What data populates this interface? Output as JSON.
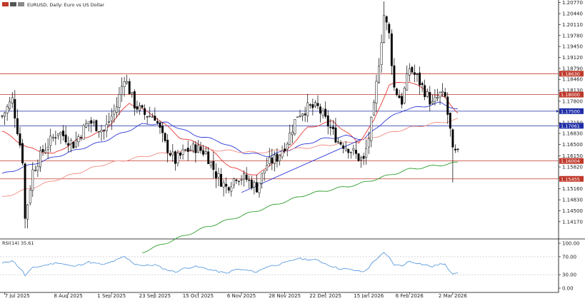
{
  "header": {
    "symbol_text": "EURUSD, Daily:  Euro vs US Dollar",
    "icon_colors": [
      "#c0392b",
      "#555555",
      "#8a8a8a"
    ]
  },
  "chart_data": [
    {
      "type": "candlestick",
      "title": "EURUSD, Daily:  Euro vs US Dollar",
      "ylim": [
        1.1365,
        1.2085
      ],
      "y_ticks": [
        1.2077,
        1.2044,
        1.2011,
        1.1978,
        1.1945,
        1.1912,
        1.1879,
        1.1846,
        1.1813,
        1.178,
        1.1748,
        1.1715,
        1.1683,
        1.165,
        1.1615,
        1.1582,
        1.1549,
        1.1516,
        1.1483,
        1.145,
        1.1417
      ],
      "y_tick_labels": [
        "1.20770",
        "1.20440",
        "1.20110",
        "1.19780",
        "1.19450",
        "1.19120",
        "1.18790",
        "1.18460",
        "1.18130",
        "1.17800",
        "1.17480",
        "1.17150",
        "1.16830",
        "1.16500",
        "1.16150",
        "1.15820",
        "1.15490",
        "1.15160",
        "1.14830",
        "1.14500",
        "1.14170"
      ],
      "x_ticks": [
        {
          "index": 1,
          "label": "7 Jul 2025"
        },
        {
          "index": 26,
          "label": "8 Aug 2025"
        },
        {
          "index": 43,
          "label": "1 Sep 2025"
        },
        {
          "index": 60,
          "label": "23 Sep 2025"
        },
        {
          "index": 77,
          "label": "15 Oct 2025"
        },
        {
          "index": 94,
          "label": "6 Nov 2025"
        },
        {
          "index": 111,
          "label": "28 Nov 2025"
        },
        {
          "index": 127,
          "label": "22 Dec 2025"
        },
        {
          "index": 144,
          "label": "15 Jan 2026"
        },
        {
          "index": 160,
          "label": "6 Feb 2026"
        },
        {
          "index": 177,
          "label": "2 Mar 2026"
        }
      ],
      "candle_count": 180,
      "candles_keypoints": [
        [
          0,
          1.1735
        ],
        [
          4,
          1.1785
        ],
        [
          8,
          1.1605
        ],
        [
          9,
          1.1425
        ],
        [
          12,
          1.157
        ],
        [
          16,
          1.163
        ],
        [
          22,
          1.169
        ],
        [
          28,
          1.165
        ],
        [
          34,
          1.172
        ],
        [
          40,
          1.169
        ],
        [
          45,
          1.1765
        ],
        [
          48,
          1.1855
        ],
        [
          52,
          1.177
        ],
        [
          56,
          1.174
        ],
        [
          60,
          1.1735
        ],
        [
          64,
          1.165
        ],
        [
          68,
          1.16
        ],
        [
          72,
          1.163
        ],
        [
          76,
          1.164
        ],
        [
          80,
          1.1625
        ],
        [
          84,
          1.156
        ],
        [
          88,
          1.152
        ],
        [
          92,
          1.1555
        ],
        [
          96,
          1.1545
        ],
        [
          100,
          1.152
        ],
        [
          104,
          1.159
        ],
        [
          108,
          1.161
        ],
        [
          112,
          1.166
        ],
        [
          116,
          1.174
        ],
        [
          120,
          1.176
        ],
        [
          124,
          1.176
        ],
        [
          128,
          1.171
        ],
        [
          132,
          1.166
        ],
        [
          136,
          1.164
        ],
        [
          140,
          1.161
        ],
        [
          142,
          1.16
        ],
        [
          144,
          1.167
        ],
        [
          146,
          1.176
        ],
        [
          148,
          1.19
        ],
        [
          150,
          1.204
        ],
        [
          152,
          1.198
        ],
        [
          154,
          1.182
        ],
        [
          157,
          1.178
        ],
        [
          160,
          1.188
        ],
        [
          163,
          1.185
        ],
        [
          166,
          1.181
        ],
        [
          169,
          1.177
        ],
        [
          172,
          1.18
        ],
        [
          174,
          1.179
        ],
        [
          176,
          1.169
        ],
        [
          177,
          1.1625
        ],
        [
          179,
          1.162
        ]
      ],
      "lowest_candle": {
        "index": 9,
        "low": 1.1397
      },
      "highest_candle": {
        "index": 150,
        "high": 1.2081
      },
      "moving_averages": [
        {
          "color": "#e53935",
          "points": [
            [
              0,
              1.169
            ],
            [
              10,
              1.164
            ],
            [
              20,
              1.162
            ],
            [
              30,
              1.1665
            ],
            [
              40,
              1.169
            ],
            [
              50,
              1.1775
            ],
            [
              60,
              1.1735
            ],
            [
              70,
              1.167
            ],
            [
              80,
              1.1645
            ],
            [
              90,
              1.158
            ],
            [
              100,
              1.1555
            ],
            [
              110,
              1.162
            ],
            [
              120,
              1.17
            ],
            [
              130,
              1.172
            ],
            [
              140,
              1.1655
            ],
            [
              146,
              1.172
            ],
            [
              152,
              1.183
            ],
            [
              160,
              1.184
            ],
            [
              168,
              1.1805
            ],
            [
              174,
              1.179
            ],
            [
              179,
              1.1745
            ]
          ]
        },
        {
          "color": "#2e3ad6",
          "points": [
            [
              0,
              1.156
            ],
            [
              20,
              1.161
            ],
            [
              40,
              1.166
            ],
            [
              55,
              1.171
            ],
            [
              65,
              1.1715
            ],
            [
              75,
              1.168
            ],
            [
              85,
              1.166
            ],
            [
              95,
              1.1625
            ],
            [
              105,
              1.1615
            ],
            [
              115,
              1.164
            ],
            [
              125,
              1.1665
            ],
            [
              135,
              1.1675
            ],
            [
              142,
              1.1665
            ],
            [
              150,
              1.172
            ],
            [
              158,
              1.1755
            ],
            [
              166,
              1.1765
            ],
            [
              172,
              1.1775
            ],
            [
              179,
              1.1755
            ]
          ]
        },
        {
          "color": "#f08a80",
          "points": [
            [
              0,
              1.149
            ],
            [
              20,
              1.154
            ],
            [
              40,
              1.159
            ],
            [
              60,
              1.162
            ],
            [
              80,
              1.1635
            ],
            [
              100,
              1.1625
            ],
            [
              120,
              1.164
            ],
            [
              140,
              1.166
            ],
            [
              160,
              1.17
            ],
            [
              179,
              1.1725
            ]
          ]
        },
        {
          "color": "#2e9e2e",
          "points": [
            [
              55,
              1.1325
            ],
            [
              80,
              1.14
            ],
            [
              100,
              1.145
            ],
            [
              120,
              1.15
            ],
            [
              140,
              1.153
            ],
            [
              160,
              1.1575
            ],
            [
              179,
              1.1595
            ]
          ]
        }
      ],
      "trendlines": [
        {
          "color": "#2e3ad6",
          "from": [
            94,
            1.1505
          ],
          "to": [
            141,
            1.1665
          ]
        }
      ],
      "h_lines": [
        {
          "price": 1.1863,
          "color": "#c0392b",
          "label": "1.18630"
        },
        {
          "price": 1.18,
          "color": "#c0392b",
          "label": "1.18000"
        },
        {
          "price": 1.175,
          "color": "#1f2ea8",
          "label": "1.17500"
        },
        {
          "price": 1.1706,
          "color": "#1f2ea8",
          "label": "1.17061"
        },
        {
          "price": 1.16,
          "color": "#c0392b",
          "label": "1.16004"
        },
        {
          "price": 1.1546,
          "color": "#c0392b",
          "label": "1.15455"
        }
      ]
    },
    {
      "type": "line",
      "title": "RSI(14) 35.61",
      "ylim": [
        0,
        100
      ],
      "y_tick_labels": [
        "100.00",
        "70.00",
        "30.00",
        "0.00"
      ],
      "y_ticks": [
        100,
        70,
        30,
        0
      ],
      "levels": [
        70,
        30
      ],
      "color": "#4a90d9",
      "points": [
        [
          0,
          55
        ],
        [
          4,
          62
        ],
        [
          8,
          38
        ],
        [
          9,
          28
        ],
        [
          12,
          45
        ],
        [
          16,
          50
        ],
        [
          22,
          57
        ],
        [
          28,
          48
        ],
        [
          34,
          58
        ],
        [
          40,
          52
        ],
        [
          45,
          63
        ],
        [
          48,
          70
        ],
        [
          52,
          54
        ],
        [
          56,
          50
        ],
        [
          60,
          52
        ],
        [
          64,
          42
        ],
        [
          68,
          36
        ],
        [
          72,
          45
        ],
        [
          76,
          48
        ],
        [
          80,
          44
        ],
        [
          84,
          38
        ],
        [
          88,
          33
        ],
        [
          92,
          42
        ],
        [
          96,
          40
        ],
        [
          100,
          36
        ],
        [
          104,
          48
        ],
        [
          108,
          52
        ],
        [
          112,
          58
        ],
        [
          116,
          66
        ],
        [
          120,
          64
        ],
        [
          124,
          62
        ],
        [
          128,
          52
        ],
        [
          132,
          44
        ],
        [
          136,
          42
        ],
        [
          140,
          38
        ],
        [
          142,
          36
        ],
        [
          144,
          46
        ],
        [
          146,
          60
        ],
        [
          148,
          70
        ],
        [
          150,
          78
        ],
        [
          152,
          68
        ],
        [
          154,
          52
        ],
        [
          157,
          50
        ],
        [
          160,
          60
        ],
        [
          163,
          56
        ],
        [
          166,
          52
        ],
        [
          169,
          48
        ],
        [
          172,
          54
        ],
        [
          174,
          52
        ],
        [
          176,
          38
        ],
        [
          177,
          33
        ],
        [
          179,
          35.61
        ]
      ]
    }
  ]
}
